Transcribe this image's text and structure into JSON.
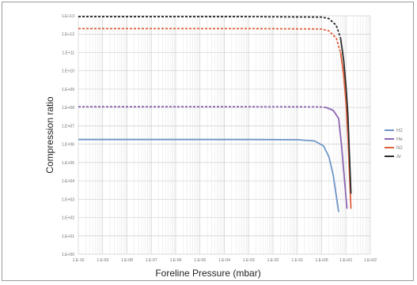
{
  "chart_data": {
    "type": "line",
    "xlabel": "Foreline Pressure (mbar)",
    "ylabel": "Compression ratio",
    "x_scale": "log",
    "y_scale": "log",
    "xlim": [
      1e-10,
      100
    ],
    "ylim": [
      1,
      10000000000000.0
    ],
    "grid": true,
    "legend_position": "right",
    "x_ticks": [
      "1.E-10",
      "1.E-09",
      "1.E-08",
      "1.E-07",
      "1.E-06",
      "1.E-05",
      "1.E-04",
      "1.E-03",
      "1.E-02",
      "1.E-01",
      "1.E+00",
      "1.E+01",
      "1.E+02"
    ],
    "y_ticks": [
      "1.E+00",
      "1.E+01",
      "1.E+02",
      "1.E+03",
      "1.E+04",
      "1.E+05",
      "1.E+06",
      "1.E+07",
      "1.E+08",
      "1.E+09",
      "1.E+10",
      "1.E+11",
      "1.E+12",
      "1.E+13"
    ],
    "series": [
      {
        "name": "H2",
        "color": "#6f95c7",
        "x": [
          1e-10,
          0.001,
          0.1,
          0.5,
          1.2,
          2.0,
          3.0,
          4.0,
          5.0
        ],
        "y": [
          1800000.0,
          1800000.0,
          1750000.0,
          1500000.0,
          800000.0,
          200000.0,
          20000.0,
          1500,
          200
        ],
        "dashed_until": null
      },
      {
        "name": "He",
        "color": "#8c65b0",
        "x": [
          1e-10,
          0.001,
          0.8,
          1.5,
          3.0,
          5.0,
          6.5,
          8.0,
          9.5,
          11
        ],
        "y": [
          110000000.0,
          110000000.0,
          108000000.0,
          100000000.0,
          70000000.0,
          25000000.0,
          1000000.0,
          40000.0,
          3000,
          300
        ],
        "dashed_until": 1.5
      },
      {
        "name": "N2",
        "color": "#e0613d",
        "x": [
          1e-10,
          0.001,
          1.0,
          2.0,
          4.0,
          6.0,
          8.0,
          10.0,
          12.0,
          14.0,
          16.0
        ],
        "y": [
          2000000000000.0,
          2000000000000.0,
          1900000000000.0,
          1500000000000.0,
          600000000000.0,
          100000000000.0,
          6000000000.0,
          200000000.0,
          3000000.0,
          20000.0,
          300
        ],
        "dashed_until": 6.0
      },
      {
        "name": "Ar",
        "color": "#2b2b2b",
        "x": [
          1e-10,
          0.001,
          1.0,
          2.0,
          4.0,
          6.0,
          8.0,
          10.0,
          12.0,
          14.0,
          16.0
        ],
        "y": [
          9000000000000.0,
          9000000000000.0,
          8500000000000.0,
          7000000000000.0,
          3000000000000.0,
          600000000000.0,
          40000000000.0,
          1500000000.0,
          40000000.0,
          200000.0,
          2000
        ],
        "dashed_until": 6.0
      }
    ]
  }
}
